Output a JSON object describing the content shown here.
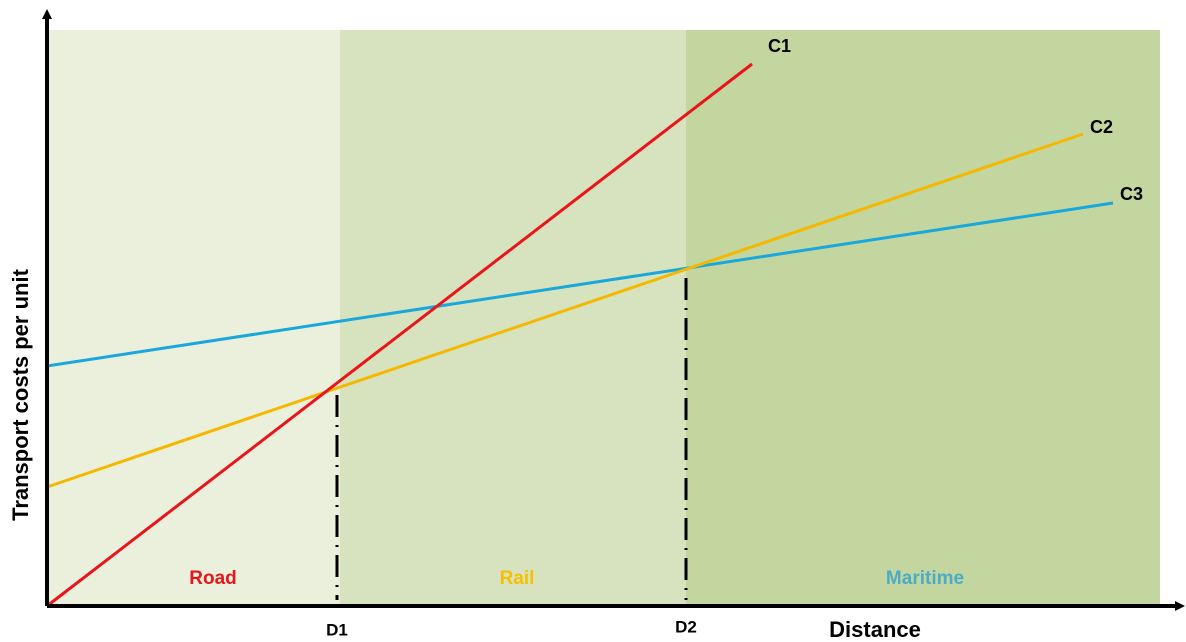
{
  "axes": {
    "x_label": "Distance",
    "y_label": "Transport costs per unit"
  },
  "zones": [
    {
      "label": "Road"
    },
    {
      "label": "Rail"
    },
    {
      "label": "Maritime"
    }
  ],
  "curves": [
    {
      "label": "C1"
    },
    {
      "label": "C2"
    },
    {
      "label": "C3"
    }
  ],
  "breakpoints": [
    {
      "label": "D1"
    },
    {
      "label": "D2"
    }
  ]
}
